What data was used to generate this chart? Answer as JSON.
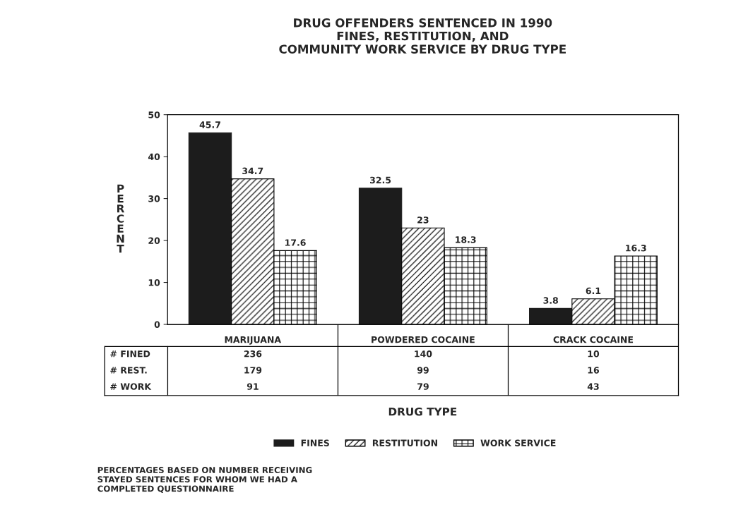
{
  "chart_data": {
    "type": "bar",
    "title": "DRUG OFFENDERS SENTENCED IN 1990\nFINES, RESTITUTION, AND\nCOMMUNITY WORK SERVICE BY DRUG TYPE",
    "ylabel": "PERCENT",
    "categories": [
      "MARIJUANA",
      "POWDERED COCAINE",
      "CRACK COCAINE"
    ],
    "series": [
      {
        "name": "FINES",
        "color": "#1c1c1c",
        "values": [
          45.7,
          32.5,
          3.8
        ]
      },
      {
        "name": "RESTITUTION",
        "color": "#000000",
        "values": [
          34.7,
          23,
          6.1
        ]
      },
      {
        "name": "WORK SERVICE",
        "color": "#000000",
        "values": [
          17.6,
          18.3,
          16.3
        ]
      }
    ],
    "ylim": [
      0,
      50
    ],
    "yticks": [
      0,
      10,
      20,
      30,
      40,
      50
    ],
    "data_labels": true,
    "grid": false,
    "legend": "bottom",
    "annotations": [
      "# FINED",
      "236",
      "140",
      "10",
      "# REST.",
      "179",
      "99",
      "16",
      "# WORK",
      "91",
      "79",
      "43",
      "DRUG TYPE",
      "PERCENTAGES BASED ON NUMBER RECEIVING\nSTAYED SENTENCES FOR WHOM WE HAD A\nCOMPLETED QUESTIONNAIRE"
    ]
  }
}
